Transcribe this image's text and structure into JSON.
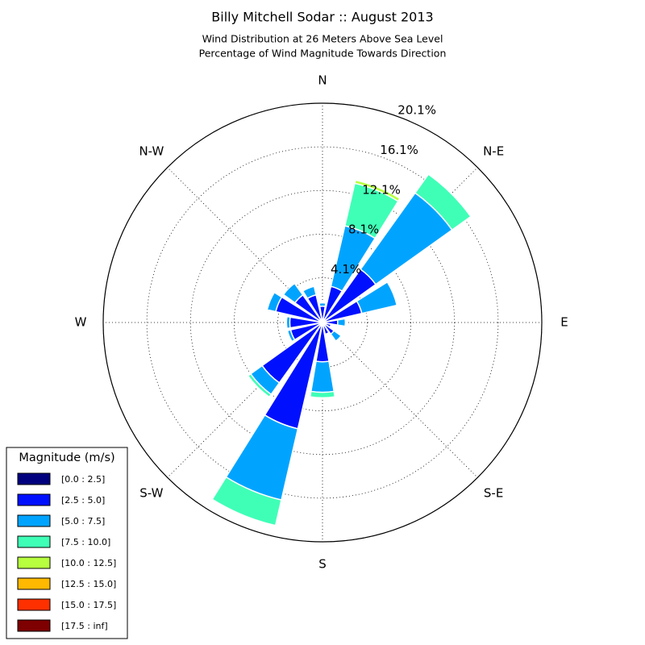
{
  "chart_data": {
    "type": "windrose",
    "title": "Billy Mitchell Sodar :: August 2013",
    "subtitle": [
      "Wind Distribution at 26 Meters Above Sea Level",
      "Percentage of Wind Magnitude Towards Direction"
    ],
    "categories": [
      "N",
      null,
      "N-E",
      null,
      "E",
      null,
      "S-E",
      null,
      "S",
      null,
      "S-W",
      null,
      "W",
      null,
      "N-W",
      null
    ],
    "rlim": [
      0,
      20.1
    ],
    "rticks": [
      {
        "value": 4.1,
        "label": "4.1%"
      },
      {
        "value": 8.1,
        "label": "8.1%"
      },
      {
        "value": 12.1,
        "label": "12.1%"
      },
      {
        "value": 16.1,
        "label": "16.1%"
      },
      {
        "value": 20.1,
        "label": "20.1%"
      }
    ],
    "grid": true,
    "legend_title": "Magnitude (m/s)",
    "legend_position": "lower left",
    "series": [
      {
        "name": "[0.0 : 2.5]",
        "color": "#00007f",
        "values": [
          0.2,
          0.1,
          0.1,
          0.1,
          0.1,
          0.2,
          0.1,
          0.1,
          0.1,
          0.2,
          0.1,
          0.1,
          0.2,
          0.2,
          0.1,
          0.1
        ]
      },
      {
        "name": "[2.5 : 5.0]",
        "color": "#0010ff",
        "values": [
          1.3,
          3.3,
          5.9,
          3.6,
          1.3,
          0.6,
          1.2,
          1.0,
          3.5,
          9.8,
          6.7,
          2.9,
          2.8,
          4.2,
          3.0,
          2.5
        ]
      },
      {
        "name": "[5.0 : 7.5]",
        "color": "#00a4ff",
        "values": [
          0.3,
          5.7,
          8.6,
          3.3,
          0.7,
          0.0,
          0.8,
          0.0,
          2.8,
          6.7,
          1.3,
          0.3,
          0.3,
          0.8,
          1.3,
          0.8
        ]
      },
      {
        "name": "[7.5 : 10.0]",
        "color": "#3fffb7",
        "values": [
          0,
          4.0,
          2.1,
          0,
          0,
          0,
          0,
          0,
          0.5,
          2.4,
          0.3,
          0,
          0,
          0,
          0,
          0
        ]
      },
      {
        "name": "[10.0 : 12.5]",
        "color": "#b7ff3f",
        "values": [
          0,
          0.3,
          0,
          0,
          0,
          0,
          0,
          0,
          0,
          0,
          0,
          0,
          0,
          0,
          0,
          0
        ]
      },
      {
        "name": "[12.5 : 15.0]",
        "color": "#ffb900",
        "values": [
          0,
          0,
          0,
          0,
          0,
          0,
          0,
          0,
          0,
          0,
          0,
          0,
          0,
          0,
          0,
          0
        ]
      },
      {
        "name": "[15.0 : 17.5]",
        "color": "#ff3000",
        "values": [
          0,
          0,
          0,
          0,
          0,
          0,
          0,
          0,
          0,
          0,
          0,
          0,
          0,
          0,
          0,
          0
        ]
      },
      {
        "name": "[17.5 : inf]",
        "color": "#7f0000",
        "values": [
          0,
          0,
          0,
          0,
          0,
          0,
          0,
          0,
          0,
          0,
          0,
          0,
          0,
          0,
          0,
          0
        ]
      }
    ]
  }
}
